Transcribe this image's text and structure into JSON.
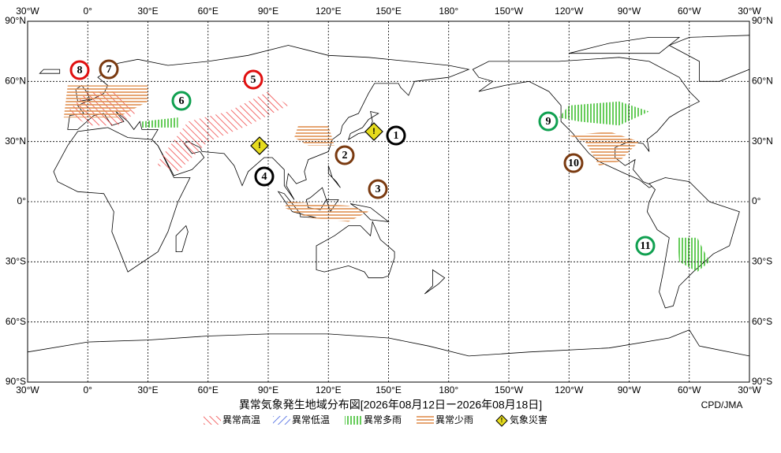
{
  "map": {
    "title": "異常気象発生地域分布図[2026年08月12日ー2026年08月18日]",
    "credit": "CPD/JMA",
    "lon_labels": [
      "30°W",
      "0°",
      "30°E",
      "60°E",
      "90°E",
      "120°E",
      "150°E",
      "180°",
      "150°W",
      "120°W",
      "90°W",
      "60°W",
      "30°W"
    ],
    "lat_labels": [
      "90°N",
      "60°N",
      "30°N",
      "0°",
      "30°S",
      "60°S",
      "90°S"
    ],
    "legend": [
      "異常高温",
      "異常低温",
      "異常多雨",
      "異常少雨",
      "気象災害"
    ],
    "hazard_symbol": "!",
    "markers": [
      "1",
      "2",
      "3",
      "4",
      "5",
      "6",
      "7",
      "8",
      "9",
      "10",
      "11"
    ]
  }
}
